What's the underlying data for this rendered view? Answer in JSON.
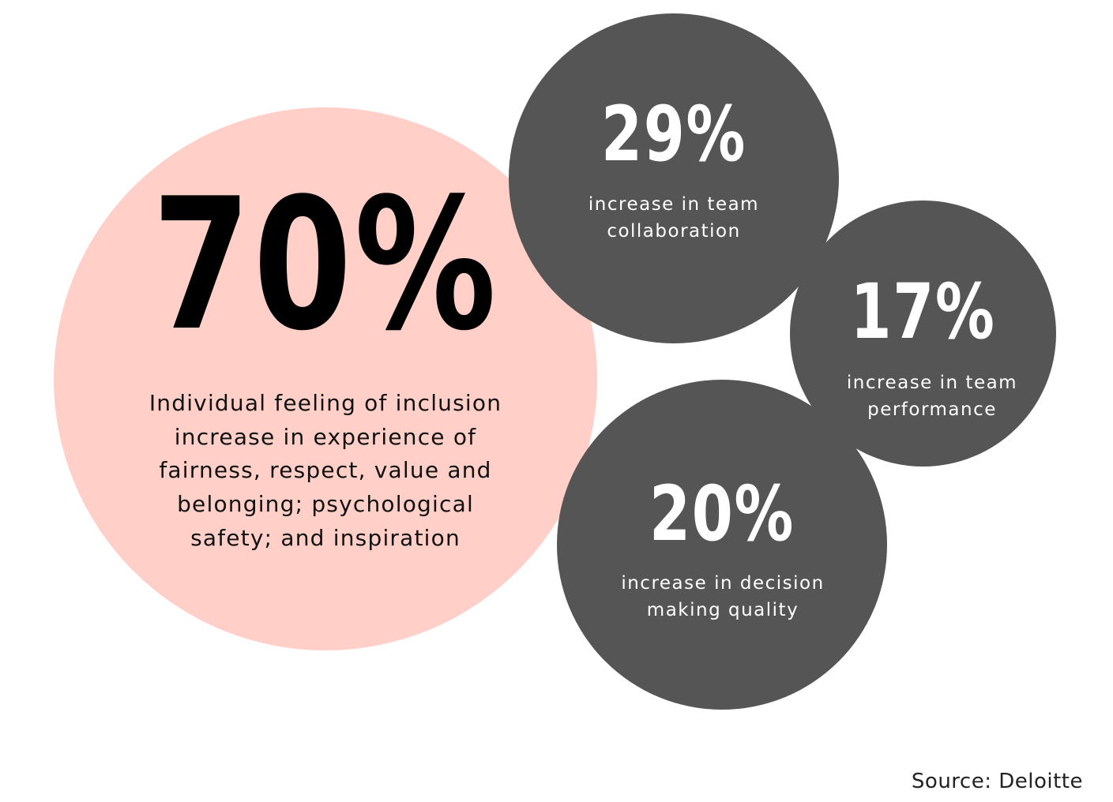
{
  "colors": {
    "primary_circle": "#ffcfc8",
    "secondary_circles": "#555555",
    "primary_text": "#000000",
    "secondary_text": "#ffffff"
  },
  "main_stat": {
    "value": "70%",
    "description": "Individual feeling of inclusion increase in experience of fairness, respect, value and belonging; psychological safety; and inspiration"
  },
  "stats": [
    {
      "value": "29%",
      "description": "increase in team collaboration"
    },
    {
      "value": "17%",
      "description": "increase in team performance"
    },
    {
      "value": "20%",
      "description": "increase in decision making quality"
    }
  ],
  "source": "Source: Deloitte"
}
